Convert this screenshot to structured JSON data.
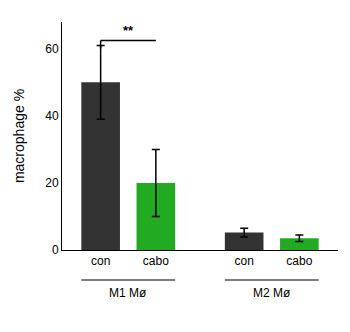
{
  "chart_data": {
    "type": "bar",
    "categories": [
      "con",
      "cabo",
      "con",
      "cabo"
    ],
    "groups": [
      "M1 Mø",
      "M1 Mø",
      "M2 Mø",
      "M2 Mø"
    ],
    "values": [
      50.0,
      20.0,
      5.2,
      3.5
    ],
    "errors": [
      11.0,
      10.0,
      1.3,
      1.0
    ],
    "colors": [
      "#333333",
      "#22aa22",
      "#333333",
      "#22aa22"
    ],
    "ylabel": "macrophage %",
    "ylim": [
      0,
      68
    ],
    "yticks": [
      0,
      20,
      40,
      60
    ],
    "grid": false,
    "annotations": [
      {
        "text": "**",
        "y": 62.5
      }
    ]
  }
}
